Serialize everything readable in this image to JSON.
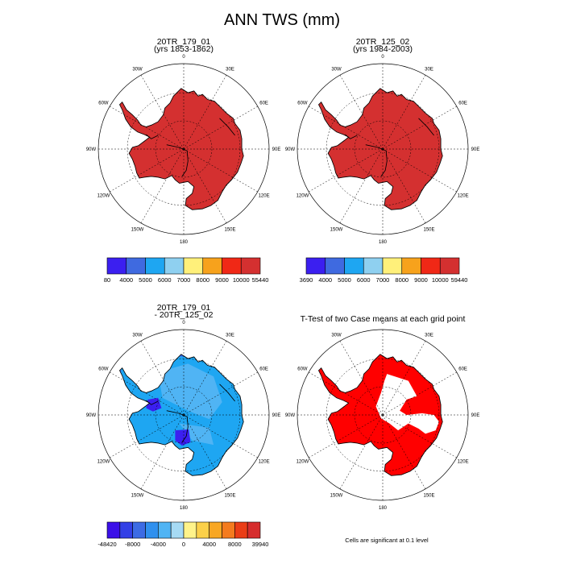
{
  "figure": {
    "title": "ANN TWS (mm)",
    "longitude_labels": [
      "0",
      "30E",
      "60E",
      "90E",
      "120E",
      "150E",
      "180",
      "150W",
      "120W",
      "90W",
      "60W",
      "30W"
    ],
    "footnote": "Cells are significant at 0.1 level"
  },
  "panels": [
    {
      "id": "case1",
      "title_line1": "20TR_179_01",
      "title_line2": "(yrs 1853-1862)",
      "field": "uniform-high",
      "colorbar": {
        "colors": [
          "#3b1ff0",
          "#3f6ae0",
          "#1ea6f2",
          "#8fd0f0",
          "#fff07a",
          "#f7a21c",
          "#f02816",
          "#d43030"
        ],
        "labels": [
          "80",
          "4000",
          "5000",
          "6000",
          "7000",
          "8000",
          "9000",
          "10000",
          "55440"
        ]
      }
    },
    {
      "id": "case2",
      "title_line1": "20TR_125_02",
      "title_line2": "(yrs 1984-2003)",
      "field": "uniform-high",
      "colorbar": {
        "colors": [
          "#3b1ff0",
          "#3f6ae0",
          "#1ea6f2",
          "#8fd0f0",
          "#fff07a",
          "#f7a21c",
          "#f02816",
          "#d43030"
        ],
        "labels": [
          "3690",
          "4000",
          "5000",
          "6000",
          "7000",
          "8000",
          "9000",
          "10000",
          "59440"
        ]
      }
    },
    {
      "id": "diff",
      "title_line1": "20TR_179_01",
      "title_line2": "- 20TR_125_02",
      "field": "difference",
      "colorbar": {
        "colors": [
          "#3b10e8",
          "#3340e6",
          "#3c6be4",
          "#2f90ee",
          "#50b4f4",
          "#a6daf4",
          "#fff38a",
          "#fbd049",
          "#f8a724",
          "#f47b1e",
          "#ea3d16",
          "#d62d2d"
        ],
        "labels": [
          "-48420",
          "-8000",
          "-4000",
          "0",
          "4000",
          "8000",
          "39940"
        ]
      }
    },
    {
      "id": "ttest",
      "title_line1": "T-Test of two Case means at each grid point",
      "title_line2": "",
      "field": "significance"
    }
  ],
  "colors": {
    "antarctica_high": "#d43030",
    "difference_main": "#1ea6f2",
    "difference_light": "#50b4f4",
    "difference_dark": "#3b1ff0",
    "difference_edge": "#3c6be4",
    "significant": "#ff0000"
  }
}
